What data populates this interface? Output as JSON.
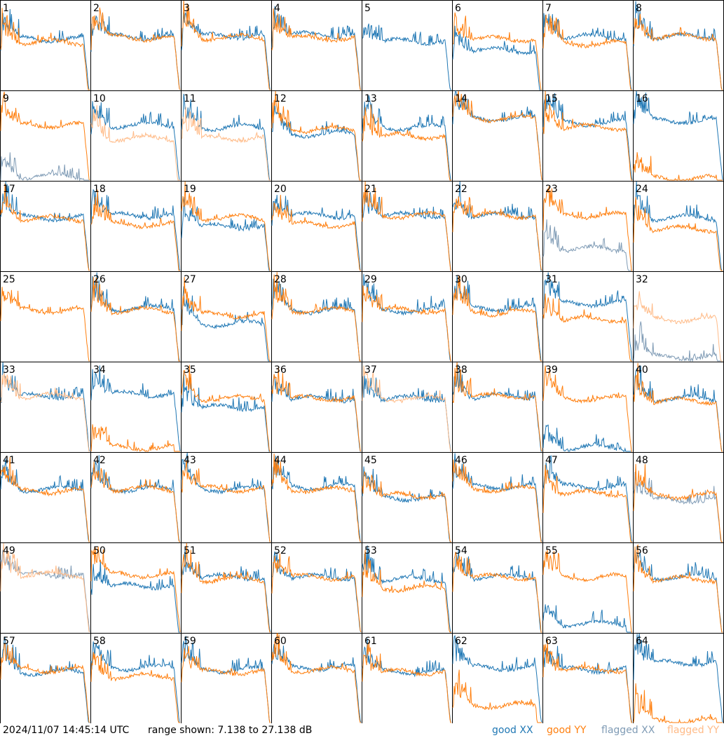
{
  "footer": {
    "timestamp": "2024/11/07 14:45:14 UTC",
    "range": "range shown: 7.138 to 27.138 dB"
  },
  "legend": [
    {
      "label": "good XX",
      "color": "#1f77b4"
    },
    {
      "label": "good YY",
      "color": "#ff7f0e"
    },
    {
      "label": "flagged XX",
      "color": "#7f9bb5"
    },
    {
      "label": "flagged YY",
      "color": "#ffbb88"
    }
  ],
  "chart_data": {
    "type": "line",
    "title": "",
    "xlabel": "",
    "ylabel": "",
    "ylim": [
      7.138,
      27.138
    ],
    "grid": "8x8 small multiples",
    "panels": [
      {
        "label": "1",
        "xx": "good",
        "yy": "good",
        "xx_level": 18.5,
        "yy_level": 17.8
      },
      {
        "label": "2",
        "xx": "good",
        "yy": "good",
        "xx_level": 19.0,
        "yy_level": 18.8
      },
      {
        "label": "3",
        "xx": "good",
        "yy": "good",
        "xx_level": 19.2,
        "yy_level": 18.9
      },
      {
        "label": "4",
        "xx": "good",
        "yy": "good",
        "xx_level": 19.5,
        "yy_level": 18.7
      },
      {
        "label": "5",
        "xx": "good",
        "yy": "none",
        "xx_level": 18.0,
        "yy_level": null
      },
      {
        "label": "6",
        "xx": "good",
        "yy": "good",
        "xx_level": 16.0,
        "yy_level": 18.5
      },
      {
        "label": "7",
        "xx": "good",
        "yy": "good",
        "xx_level": 19.0,
        "yy_level": 17.5
      },
      {
        "label": "8",
        "xx": "good",
        "yy": "good",
        "xx_level": 19.0,
        "yy_level": 19.0
      },
      {
        "label": "9",
        "xx": "flagged",
        "yy": "good",
        "xx_level": 8.0,
        "yy_level": 19.5
      },
      {
        "label": "10",
        "xx": "good",
        "yy": "flagged",
        "xx_level": 19.5,
        "yy_level": 16.5
      },
      {
        "label": "11",
        "xx": "good",
        "yy": "flagged",
        "xx_level": 19.0,
        "yy_level": 16.5
      },
      {
        "label": "12",
        "xx": "good",
        "yy": "good",
        "xx_level": 17.5,
        "yy_level": 18.5
      },
      {
        "label": "13",
        "xx": "good",
        "yy": "good",
        "xx_level": 19.0,
        "yy_level": 17.0
      },
      {
        "label": "14",
        "xx": "good",
        "yy": "good",
        "xx_level": 21.0,
        "yy_level": 21.0
      },
      {
        "label": "15",
        "xx": "good",
        "yy": "good",
        "xx_level": 20.0,
        "yy_level": 19.0
      },
      {
        "label": "16",
        "xx": "good",
        "yy": "good",
        "xx_level": 20.5,
        "yy_level": 7.5
      },
      {
        "label": "17",
        "xx": "good",
        "yy": "good",
        "xx_level": 19.0,
        "yy_level": 18.8
      },
      {
        "label": "18",
        "xx": "good",
        "yy": "good",
        "xx_level": 19.5,
        "yy_level": 17.5
      },
      {
        "label": "19",
        "xx": "good",
        "yy": "good",
        "xx_level": 17.0,
        "yy_level": 19.0
      },
      {
        "label": "20",
        "xx": "good",
        "yy": "good",
        "xx_level": 19.5,
        "yy_level": 17.5
      },
      {
        "label": "21",
        "xx": "good",
        "yy": "good",
        "xx_level": 19.5,
        "yy_level": 19.5
      },
      {
        "label": "22",
        "xx": "good",
        "yy": "good",
        "xx_level": 19.5,
        "yy_level": 19.5
      },
      {
        "label": "23",
        "xx": "flagged",
        "yy": "good",
        "xx_level": 12.0,
        "yy_level": 19.5
      },
      {
        "label": "24",
        "xx": "good",
        "yy": "good",
        "xx_level": 19.0,
        "yy_level": 16.5
      },
      {
        "label": "25",
        "xx": "none",
        "yy": "good",
        "xx_level": null,
        "yy_level": 18.5
      },
      {
        "label": "26",
        "xx": "good",
        "yy": "good",
        "xx_level": 19.0,
        "yy_level": 18.5
      },
      {
        "label": "27",
        "xx": "good",
        "yy": "good",
        "xx_level": 15.5,
        "yy_level": 17.5
      },
      {
        "label": "28",
        "xx": "good",
        "yy": "good",
        "xx_level": 18.5,
        "yy_level": 18.5
      },
      {
        "label": "29",
        "xx": "good",
        "yy": "good",
        "xx_level": 18.5,
        "yy_level": 18.5
      },
      {
        "label": "30",
        "xx": "good",
        "yy": "good",
        "xx_level": 19.0,
        "yy_level": 18.0
      },
      {
        "label": "31",
        "xx": "good",
        "yy": "good",
        "xx_level": 20.0,
        "yy_level": 16.5
      },
      {
        "label": "32",
        "xx": "flagged",
        "yy": "flagged",
        "xx_level": 8.0,
        "yy_level": 16.5
      },
      {
        "label": "33",
        "xx": "good",
        "yy": "flagged",
        "xx_level": 19.5,
        "yy_level": 19.5
      },
      {
        "label": "34",
        "xx": "good",
        "yy": "good",
        "xx_level": 20.0,
        "yy_level": 8.0
      },
      {
        "label": "35",
        "xx": "good",
        "yy": "good",
        "xx_level": 17.0,
        "yy_level": 19.0
      },
      {
        "label": "36",
        "xx": "good",
        "yy": "good",
        "xx_level": 19.0,
        "yy_level": 19.0
      },
      {
        "label": "37",
        "xx": "good",
        "yy": "flagged",
        "xx_level": 19.0,
        "yy_level": 19.0
      },
      {
        "label": "38",
        "xx": "good",
        "yy": "good",
        "xx_level": 19.5,
        "yy_level": 19.5
      },
      {
        "label": "39",
        "xx": "good",
        "yy": "good",
        "xx_level": 8.0,
        "yy_level": 19.0
      },
      {
        "label": "40",
        "xx": "good",
        "yy": "good",
        "xx_level": 19.0,
        "yy_level": 18.5
      },
      {
        "label": "41",
        "xx": "good",
        "yy": "good",
        "xx_level": 19.0,
        "yy_level": 18.5
      },
      {
        "label": "42",
        "xx": "good",
        "yy": "good",
        "xx_level": 19.0,
        "yy_level": 19.0
      },
      {
        "label": "43",
        "xx": "good",
        "yy": "good",
        "xx_level": 19.0,
        "yy_level": 19.0
      },
      {
        "label": "44",
        "xx": "good",
        "yy": "good",
        "xx_level": 19.5,
        "yy_level": 18.8
      },
      {
        "label": "45",
        "xx": "good",
        "yy": "good",
        "xx_level": 17.0,
        "yy_level": 17.5
      },
      {
        "label": "46",
        "xx": "good",
        "yy": "good",
        "xx_level": 19.5,
        "yy_level": 19.0
      },
      {
        "label": "47",
        "xx": "good",
        "yy": "good",
        "xx_level": 19.5,
        "yy_level": 18.0
      },
      {
        "label": "48",
        "xx": "flagged",
        "yy": "good",
        "xx_level": 16.5,
        "yy_level": 17.5
      },
      {
        "label": "49",
        "xx": "flagged",
        "yy": "flagged",
        "xx_level": 20.0,
        "yy_level": 20.0
      },
      {
        "label": "50",
        "xx": "good",
        "yy": "good",
        "xx_level": 17.5,
        "yy_level": 20.0
      },
      {
        "label": "51",
        "xx": "good",
        "yy": "good",
        "xx_level": 19.5,
        "yy_level": 19.0
      },
      {
        "label": "52",
        "xx": "good",
        "yy": "good",
        "xx_level": 19.5,
        "yy_level": 19.5
      },
      {
        "label": "53",
        "xx": "good",
        "yy": "good",
        "xx_level": 19.0,
        "yy_level": 17.0
      },
      {
        "label": "54",
        "xx": "good",
        "yy": "good",
        "xx_level": 19.5,
        "yy_level": 19.5
      },
      {
        "label": "55",
        "xx": "good",
        "yy": "good",
        "xx_level": 9.0,
        "yy_level": 19.5
      },
      {
        "label": "56",
        "xx": "good",
        "yy": "good",
        "xx_level": 19.5,
        "yy_level": 19.0
      },
      {
        "label": "57",
        "xx": "good",
        "yy": "good",
        "xx_level": 18.5,
        "yy_level": 19.0
      },
      {
        "label": "58",
        "xx": "good",
        "yy": "good",
        "xx_level": 19.5,
        "yy_level": 17.5
      },
      {
        "label": "59",
        "xx": "good",
        "yy": "good",
        "xx_level": 19.0,
        "yy_level": 18.5
      },
      {
        "label": "60",
        "xx": "good",
        "yy": "good",
        "xx_level": 19.5,
        "yy_level": 19.0
      },
      {
        "label": "61",
        "xx": "good",
        "yy": "good",
        "xx_level": 18.5,
        "yy_level": 18.5
      },
      {
        "label": "62",
        "xx": "good",
        "yy": "good",
        "xx_level": 19.5,
        "yy_level": 11.0
      },
      {
        "label": "63",
        "xx": "good",
        "yy": "good",
        "xx_level": 19.0,
        "yy_level": 19.0
      },
      {
        "label": "64",
        "xx": "good",
        "yy": "good",
        "xx_level": 20.5,
        "yy_level": 7.5
      }
    ]
  }
}
